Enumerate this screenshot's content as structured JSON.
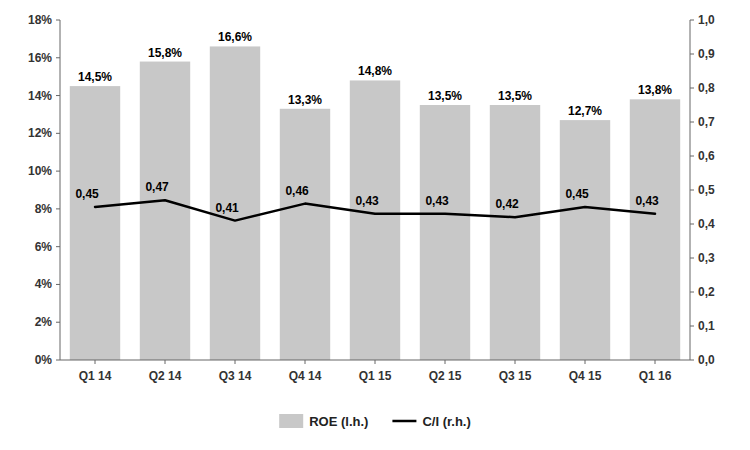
{
  "chart_data": {
    "type": "bar",
    "categories": [
      "Q1 14",
      "Q2 14",
      "Q3 14",
      "Q4 14",
      "Q1 15",
      "Q2 15",
      "Q3 15",
      "Q4 15",
      "Q1 16"
    ],
    "series": [
      {
        "name": "ROE (l.h.)",
        "type": "bar",
        "color": "#c8c8c8",
        "values": [
          0.145,
          0.158,
          0.166,
          0.133,
          0.148,
          0.135,
          0.135,
          0.127,
          0.138
        ],
        "value_labels": [
          "14,5%",
          "15,8%",
          "16,6%",
          "13,3%",
          "14,8%",
          "13,5%",
          "13,5%",
          "12,7%",
          "13,8%"
        ]
      },
      {
        "name": "C/I (r.h.)",
        "type": "line",
        "color": "#000000",
        "axis": "y2",
        "values": [
          0.45,
          0.47,
          0.41,
          0.46,
          0.43,
          0.43,
          0.42,
          0.45,
          0.43
        ],
        "value_labels": [
          "0,45",
          "0,47",
          "0,41",
          "0,46",
          "0,43",
          "0,43",
          "0,42",
          "0,45",
          "0,43"
        ]
      }
    ],
    "ylim": [
      0,
      0.18
    ],
    "yticks": [
      {
        "value": 0.0,
        "label": "0%"
      },
      {
        "value": 0.02,
        "label": "2%"
      },
      {
        "value": 0.04,
        "label": "4%"
      },
      {
        "value": 0.06,
        "label": "6%"
      },
      {
        "value": 0.08,
        "label": "8%"
      },
      {
        "value": 0.1,
        "label": "10%"
      },
      {
        "value": 0.12,
        "label": "12%"
      },
      {
        "value": 0.14,
        "label": "14%"
      },
      {
        "value": 0.16,
        "label": "16%"
      },
      {
        "value": 0.18,
        "label": "18%"
      }
    ],
    "y2lim": [
      0.0,
      1.0
    ],
    "y2ticks": [
      {
        "value": 0.0,
        "label": "0,0"
      },
      {
        "value": 0.1,
        "label": "0,1"
      },
      {
        "value": 0.2,
        "label": "0,2"
      },
      {
        "value": 0.3,
        "label": "0,3"
      },
      {
        "value": 0.4,
        "label": "0,4"
      },
      {
        "value": 0.5,
        "label": "0,5"
      },
      {
        "value": 0.6,
        "label": "0,6"
      },
      {
        "value": 0.7,
        "label": "0,7"
      },
      {
        "value": 0.8,
        "label": "0,8"
      },
      {
        "value": 0.9,
        "label": "0,9"
      },
      {
        "value": 1.0,
        "label": "1,0"
      }
    ],
    "data_labels": true,
    "grid": false,
    "legend": "bottom"
  }
}
